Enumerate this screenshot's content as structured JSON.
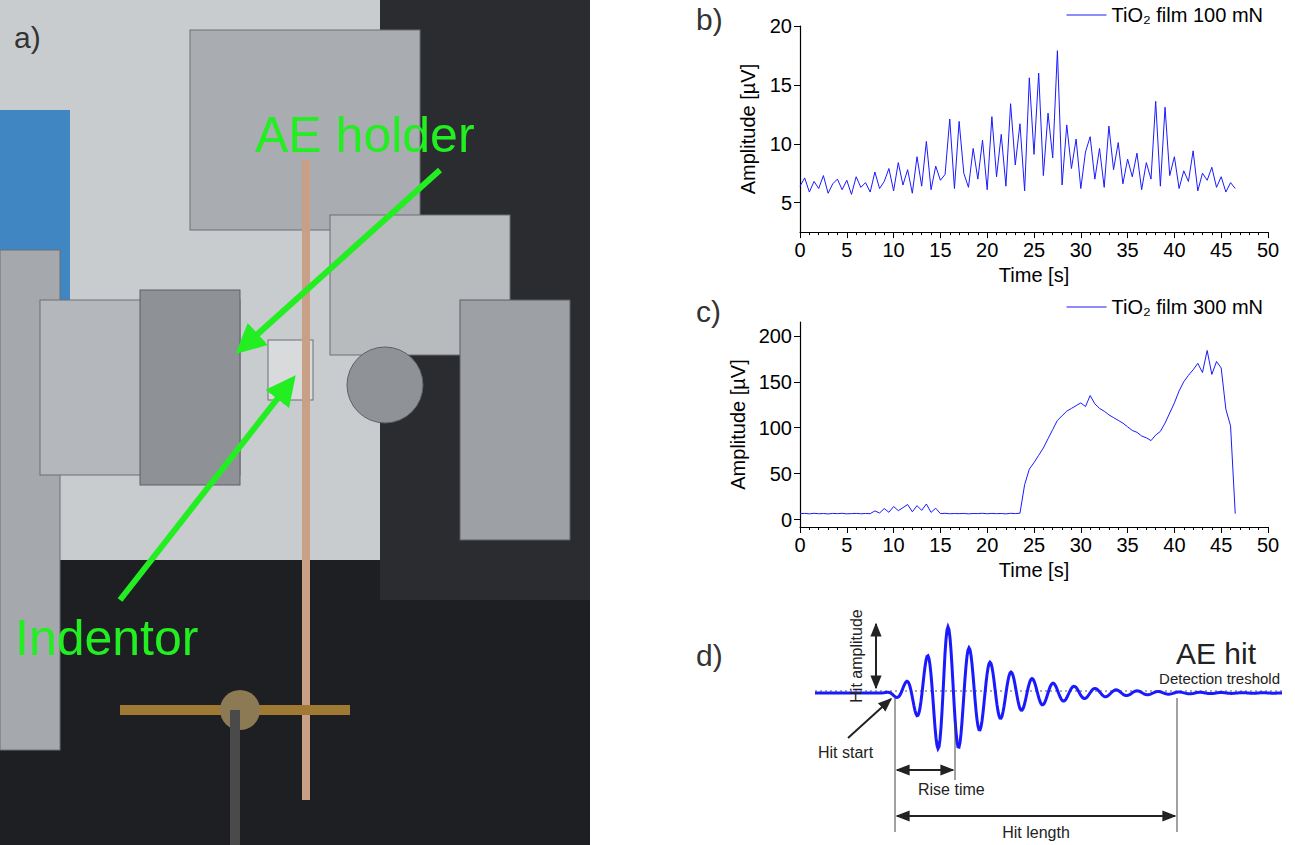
{
  "panel_labels": [
    "a)",
    "b)",
    "c)",
    "d)"
  ],
  "photo": {
    "labels": [
      "AE holder",
      "Indentor"
    ]
  },
  "chart_data": [
    {
      "type": "line",
      "x": [
        0,
        0.5,
        1,
        1.5,
        2,
        2.5,
        3,
        3.5,
        4,
        4.5,
        5,
        5.5,
        6,
        6.5,
        7,
        7.5,
        8,
        8.5,
        9,
        9.5,
        10,
        10.5,
        11,
        11.5,
        12,
        12.5,
        13,
        13.5,
        14,
        14.5,
        15,
        15.5,
        16,
        16.5,
        17,
        17.5,
        18,
        18.5,
        19,
        19.5,
        20,
        20.5,
        21,
        21.5,
        22,
        22.5,
        23,
        23.5,
        24,
        24.5,
        25,
        25.5,
        26,
        26.5,
        27,
        27.5,
        28,
        28.5,
        29,
        29.5,
        30,
        30.5,
        31,
        31.5,
        32,
        32.5,
        33,
        33.5,
        34,
        34.5,
        35,
        35.5,
        36,
        36.5,
        37,
        37.5,
        38,
        38.5,
        39,
        39.5,
        40,
        40.5,
        41,
        41.5,
        42,
        42.5,
        43,
        43.5,
        44,
        44.5,
        45,
        45.5,
        46,
        46.5
      ],
      "series": [
        {
          "name": "TiO₂ film 100 mN",
          "color": "#1a1aff",
          "values": [
            6.4,
            7.1,
            5.9,
            6.8,
            6.2,
            7.3,
            5.8,
            6.6,
            7.0,
            6.1,
            6.9,
            5.7,
            7.2,
            6.3,
            6.7,
            5.9,
            7.6,
            6.2,
            6.8,
            7.9,
            6.0,
            8.4,
            6.5,
            7.8,
            5.8,
            8.9,
            6.4,
            10.2,
            6.1,
            8.1,
            6.9,
            7.4,
            12.1,
            6.2,
            11.9,
            7.5,
            6.3,
            9.6,
            7.0,
            10.3,
            6.1,
            12.3,
            7.2,
            10.8,
            6.4,
            13.4,
            8.2,
            11.7,
            6.0,
            15.6,
            9.1,
            16.0,
            7.3,
            12.6,
            8.8,
            17.9,
            6.5,
            11.6,
            7.9,
            10.4,
            6.2,
            9.3,
            10.6,
            7.0,
            9.6,
            6.3,
            11.5,
            7.8,
            10.1,
            6.6,
            8.7,
            7.2,
            9.2,
            6.1,
            8.4,
            7.0,
            13.6,
            6.4,
            13.1,
            7.3,
            8.9,
            6.2,
            7.7,
            6.8,
            9.4,
            6.0,
            7.5,
            6.9,
            8.0,
            6.3,
            7.2,
            5.9,
            6.7,
            6.2
          ]
        }
      ],
      "xlim": [
        0,
        50
      ],
      "xticks": [
        0,
        5,
        10,
        15,
        20,
        25,
        30,
        35,
        40,
        45,
        50
      ],
      "ylim": [
        2.5,
        20
      ],
      "yticks": [
        5,
        10,
        15,
        20
      ],
      "xlabel": "Time [s]",
      "ylabel": "Amplitude [µV]",
      "legend": "upper right"
    },
    {
      "type": "line",
      "x": [
        0,
        0.5,
        1,
        1.5,
        2,
        2.5,
        3,
        3.5,
        4,
        4.5,
        5,
        5.5,
        6,
        6.5,
        7,
        7.5,
        8,
        8.5,
        9,
        9.5,
        10,
        10.5,
        11,
        11.5,
        12,
        12.5,
        13,
        13.5,
        14,
        14.5,
        15,
        15.5,
        16,
        16.5,
        17,
        17.5,
        18,
        18.5,
        19,
        19.5,
        20,
        20.5,
        21,
        21.5,
        22,
        22.5,
        23,
        23.5,
        24,
        24.5,
        25,
        25.5,
        26,
        26.5,
        27,
        27.5,
        28,
        28.5,
        29,
        29.5,
        30,
        30.5,
        31,
        31.5,
        32,
        32.5,
        33,
        33.5,
        34,
        34.5,
        35,
        35.5,
        36,
        36.5,
        37,
        37.5,
        38,
        38.5,
        39,
        39.5,
        40,
        40.5,
        41,
        41.5,
        42,
        42.5,
        43,
        43.5,
        44,
        44.5,
        45,
        45.5,
        46,
        46.5
      ],
      "series": [
        {
          "name": "TiO₂ film 300 mN",
          "color": "#1a1aff",
          "values": [
            6.5,
            6.8,
            6.3,
            6.9,
            6.4,
            6.7,
            6.2,
            6.8,
            6.5,
            6.9,
            6.3,
            6.6,
            6.8,
            6.4,
            6.7,
            6.5,
            9.5,
            7.2,
            12.1,
            8.0,
            14.3,
            9.8,
            13.0,
            16.5,
            8.6,
            15.2,
            10.1,
            17.0,
            7.9,
            12.4,
            6.6,
            6.9,
            6.4,
            6.7,
            6.5,
            6.8,
            6.3,
            6.7,
            6.6,
            6.9,
            6.4,
            6.8,
            6.5,
            6.7,
            6.3,
            6.9,
            6.6,
            7.0,
            38,
            55,
            62,
            70,
            78,
            88,
            98,
            108,
            113,
            118,
            121,
            124,
            127,
            123,
            135,
            126,
            121,
            118,
            114,
            111,
            108,
            105,
            101,
            97,
            95,
            91,
            89,
            86,
            92,
            96,
            105,
            116,
            127,
            140,
            150,
            157,
            163,
            170,
            160,
            184,
            158,
            172,
            165,
            120,
            102,
            6.5
          ]
        }
      ],
      "xlim": [
        0,
        50
      ],
      "xticks": [
        0,
        5,
        10,
        15,
        20,
        25,
        30,
        35,
        40,
        45,
        50
      ],
      "ylim": [
        -8,
        215
      ],
      "yticks": [
        0,
        50,
        100,
        150,
        200
      ],
      "xlabel": "Time [s]",
      "ylabel": "Amplitude [µV]",
      "legend": "upper right"
    }
  ],
  "diagram": {
    "title": "AE hit",
    "labels": {
      "amplitude": "Hit amplitude",
      "threshold": "Detection treshold",
      "start": "Hit start",
      "rise": "Rise time",
      "length": "Hit length"
    }
  }
}
